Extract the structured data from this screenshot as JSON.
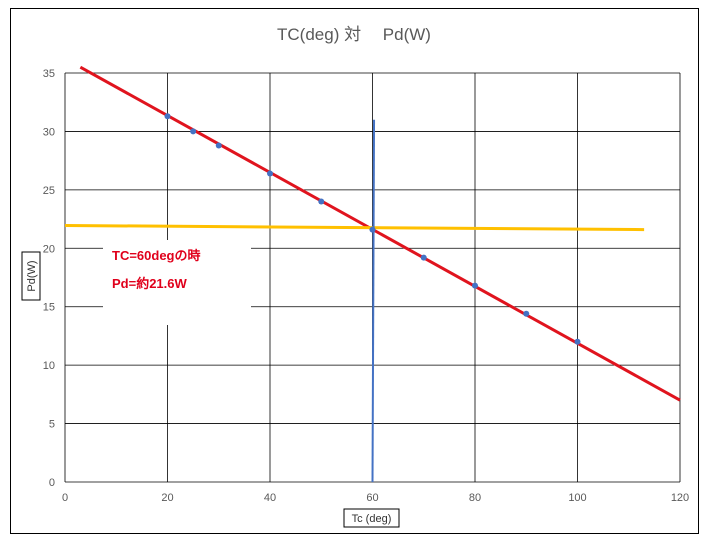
{
  "chart_data": {
    "type": "scatter",
    "title": "TC(deg) 対　 Pd(W)",
    "xlabel": "Tc (deg)",
    "ylabel": "Pd(W)",
    "xlim": [
      0,
      120
    ],
    "ylim": [
      0,
      35
    ],
    "xticks": [
      0,
      20,
      40,
      60,
      80,
      100,
      120
    ],
    "yticks": [
      0,
      5,
      10,
      15,
      20,
      25,
      30,
      35
    ],
    "grid": true,
    "series": [
      {
        "values": [
          [
            20,
            31.3
          ],
          [
            25,
            30.0
          ],
          [
            30,
            28.8
          ],
          [
            40,
            26.4
          ],
          [
            50,
            24.0
          ],
          [
            60,
            21.6
          ],
          [
            70,
            19.2
          ],
          [
            80,
            16.8
          ],
          [
            90,
            14.4
          ],
          [
            100,
            12.0
          ]
        ],
        "color": "#4472c4"
      }
    ],
    "lines": [
      {
        "name": "trend",
        "points": [
          [
            3,
            35.5
          ],
          [
            120,
            7.0
          ]
        ],
        "color": "#e0141e"
      },
      {
        "name": "horizontal-marker",
        "points": [
          [
            0,
            21.95
          ],
          [
            113,
            21.6
          ]
        ],
        "color": "#ffc000"
      },
      {
        "name": "vertical-marker",
        "points": [
          [
            60.3,
            31.0
          ],
          [
            60.0,
            0
          ]
        ],
        "color": "#4472c4"
      }
    ],
    "annotations": [
      {
        "text": "TC=60degの時",
        "color": "#e0001b"
      },
      {
        "text": "Pd=約21.6W",
        "color": "#e0001b"
      }
    ]
  }
}
